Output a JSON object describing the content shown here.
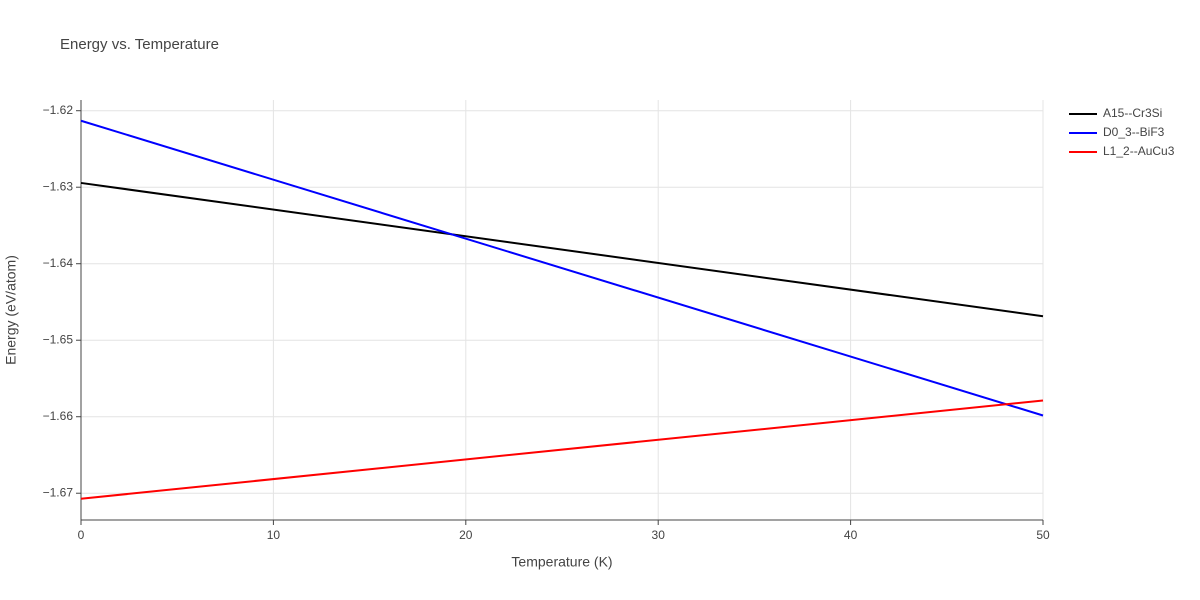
{
  "chart_data": {
    "type": "line",
    "title": "Energy vs. Temperature",
    "x_label": "Temperature (K)",
    "y_label": "Energy (eV/atom)",
    "x": [
      0,
      50
    ],
    "series": [
      {
        "name": "A15--Cr3Si",
        "color": "#000000",
        "values": [
          -1.62944,
          -1.64687
        ]
      },
      {
        "name": "D0_3--BiF3",
        "color": "#0000ff",
        "values": [
          -1.62131,
          -1.65984
        ]
      },
      {
        "name": "L1_2--AuCu3",
        "color": "#ff0000",
        "values": [
          -1.67072,
          -1.65788
        ]
      }
    ],
    "xlim": [
      0,
      50
    ],
    "xticks": [
      0,
      10,
      20,
      30,
      40,
      50
    ],
    "ylim": [
      -1.6735,
      -1.6186
    ],
    "yticks": [
      {
        "value": -1.67,
        "label": "−1.67"
      },
      {
        "value": -1.66,
        "label": "−1.66"
      },
      {
        "value": -1.65,
        "label": "−1.65"
      },
      {
        "value": -1.64,
        "label": "−1.64"
      },
      {
        "value": -1.63,
        "label": "−1.63"
      },
      {
        "value": -1.62,
        "label": "−1.62"
      }
    ],
    "grid": true,
    "legend": "right"
  }
}
